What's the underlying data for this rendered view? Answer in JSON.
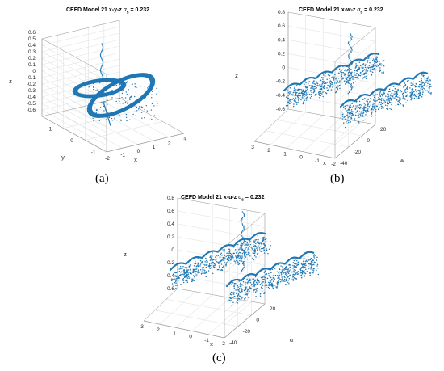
{
  "chart_data": [
    {
      "type": "scatter",
      "title_main": "CEFD Model 21 x-y-z ",
      "title_param": "α",
      "title_sub": "s",
      "title_value": " = 0.232",
      "panel_label": "(a)",
      "xlabel": "x",
      "ylabel": "y",
      "zlabel": "z",
      "xticks": [
        "-2",
        "-1",
        "0",
        "1",
        "2",
        "3"
      ],
      "yticks": [
        "1",
        "0",
        "-1"
      ],
      "zticks": [
        "0.6",
        "0.5",
        "0.4",
        "0.3",
        "0.2",
        "0.1",
        "0",
        "-0.1",
        "-0.2",
        "-0.3",
        "-0.4",
        "-0.5",
        "-0.6"
      ],
      "xlim": [
        -2,
        3
      ],
      "ylim": [
        -1.5,
        1.5
      ],
      "zlim": [
        -0.6,
        0.8
      ],
      "grid": true,
      "color": "#1f77b4"
    },
    {
      "type": "scatter",
      "title_main": "CEFD Model 21 x-w-z ",
      "title_param": "α",
      "title_sub": "s",
      "title_value": " = 0.232",
      "panel_label": "(b)",
      "xlabel": "x",
      "ylabel": "w",
      "zlabel": "z",
      "xticks": [
        "3",
        "2",
        "1",
        "0",
        "-1",
        "-2"
      ],
      "yticks": [
        "-40",
        "-20",
        "0",
        "20"
      ],
      "zticks": [
        "0.8",
        "0.6",
        "0.4",
        "0.2",
        "0",
        "-0.2",
        "-0.4",
        "-0.6"
      ],
      "xlim": [
        -2,
        3
      ],
      "ylim": [
        -40,
        20
      ],
      "zlim": [
        -0.6,
        0.8
      ],
      "grid": true,
      "color": "#1f77b4"
    },
    {
      "type": "scatter",
      "title_main": "CEFD Model 21 x-u-z ",
      "title_param": "α",
      "title_sub": "s",
      "title_value": " = 0.232",
      "panel_label": "(c)",
      "xlabel": "x",
      "ylabel": "u",
      "zlabel": "z",
      "xticks": [
        "3",
        "2",
        "1",
        "0",
        "-1",
        "-2"
      ],
      "yticks": [
        "-40",
        "-20",
        "0",
        "20"
      ],
      "zticks": [
        "0.8",
        "0.6",
        "0.4",
        "0.2",
        "0",
        "-0.2",
        "-0.4",
        "-0.6"
      ],
      "xlim": [
        -2,
        3
      ],
      "ylim": [
        -40,
        20
      ],
      "zlim": [
        -0.6,
        0.8
      ],
      "grid": true,
      "color": "#1f77b4"
    }
  ]
}
